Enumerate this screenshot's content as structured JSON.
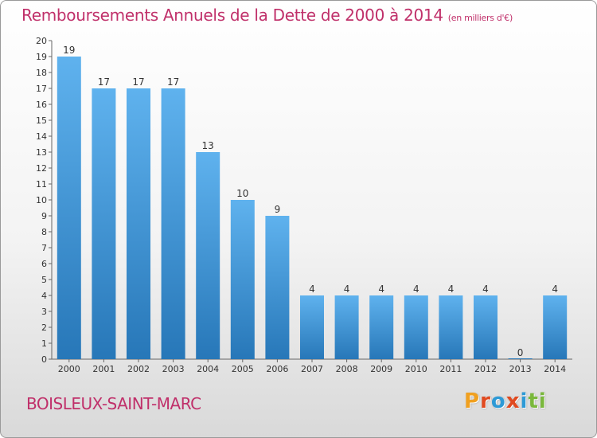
{
  "header": {
    "title": "Remboursements Annuels de la Dette de 2000 à 2014",
    "unit": "(en milliers d'€)"
  },
  "footer": {
    "place": "BOISLEUX-SAINT-MARC",
    "brand": "Proxiti"
  },
  "colors": {
    "title": "#c0306a",
    "bar_top": "#5fb2ee",
    "bar_bottom": "#2777b8",
    "brand": [
      "#f0a020",
      "#e04a20",
      "#2e9ad6",
      "#e04a20",
      "#2e9ad6",
      "#7ab83c",
      "#7ab83c"
    ]
  },
  "chart_data": {
    "type": "bar",
    "title": "Remboursements Annuels de la Dette de 2000 à 2014",
    "subtitle": "(en milliers d'€)",
    "categories": [
      "2000",
      "2001",
      "2002",
      "2003",
      "2004",
      "2005",
      "2006",
      "2007",
      "2008",
      "2009",
      "2010",
      "2011",
      "2012",
      "2013",
      "2014"
    ],
    "values": [
      19,
      17,
      17,
      17,
      13,
      10,
      9,
      4,
      4,
      4,
      4,
      4,
      4,
      0,
      4
    ],
    "ylim": [
      0,
      20
    ],
    "yticks": [
      0,
      1,
      2,
      3,
      4,
      5,
      6,
      7,
      8,
      9,
      10,
      11,
      12,
      13,
      14,
      15,
      16,
      17,
      18,
      19,
      20
    ],
    "xlabel": "",
    "ylabel": "",
    "grid": false,
    "legend": "none"
  }
}
